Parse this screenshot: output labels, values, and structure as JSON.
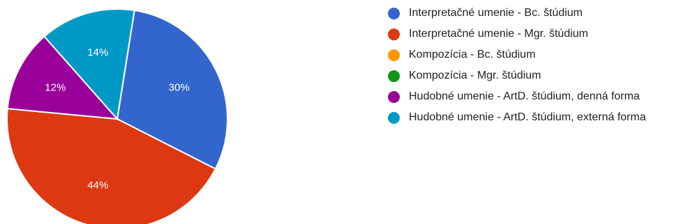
{
  "chart_data": {
    "type": "pie",
    "title": "",
    "start_angle_deg": -81,
    "categories": [
      "Interpretačné umenie - Bc. štúdium",
      "Interpretačné umenie - Mgr. štúdium",
      "Kompozícia - Bc. štúdium",
      "Kompozícia - Mgr. štúdium",
      "Hudobné umenie - ArtD. štúdium, denná forma",
      "Hudobné umenie - ArtD. štúdium, externá forma"
    ],
    "values": [
      30,
      44,
      0,
      0,
      12,
      14
    ],
    "labels": [
      "30%",
      "44%",
      "",
      "",
      "12%",
      "14%"
    ],
    "colors": [
      "#3366cc",
      "#dc3912",
      "#ff9900",
      "#109618",
      "#990099",
      "#0099c6"
    ],
    "legend_position": "right"
  }
}
